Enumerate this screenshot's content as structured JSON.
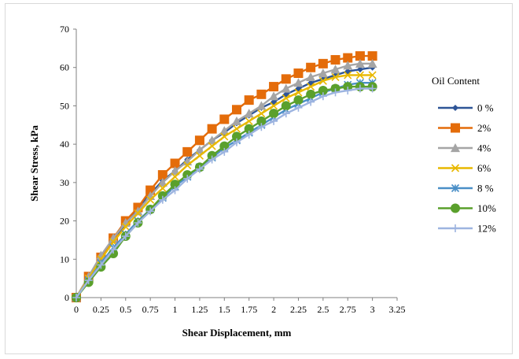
{
  "chart_data": {
    "type": "line",
    "title": "",
    "xlabel": "Shear Displacement, mm",
    "ylabel": "Shear Stress, kPa",
    "xlim": [
      0,
      3.25
    ],
    "ylim": [
      0,
      70
    ],
    "x_ticks": [
      0,
      0.25,
      0.5,
      0.75,
      1,
      1.25,
      1.5,
      1.75,
      2,
      2.25,
      2.5,
      2.75,
      3,
      3.25
    ],
    "x_tick_labels": [
      "0",
      "0.25",
      "0.5",
      "0.75",
      "1",
      "1.25",
      "1.5",
      "1.75",
      "2",
      "2.25",
      "2.5",
      "2.75",
      "3",
      "3.25"
    ],
    "y_ticks": [
      0,
      10,
      20,
      30,
      40,
      50,
      60,
      70
    ],
    "y_tick_labels": [
      "0",
      "10",
      "20",
      "30",
      "40",
      "50",
      "60",
      "70"
    ],
    "grid": false,
    "legend_title": "Oil Content",
    "legend_position": "right",
    "series": [
      {
        "name": "0 %",
        "color": "#2e5597",
        "marker": "diamond",
        "x": [
          0,
          0.125,
          0.25,
          0.375,
          0.5,
          0.625,
          0.75,
          0.875,
          1,
          1.125,
          1.25,
          1.375,
          1.5,
          1.625,
          1.75,
          1.875,
          2,
          2.125,
          2.25,
          2.375,
          2.5,
          2.625,
          2.75,
          2.875,
          3
        ],
        "y": [
          0,
          5.5,
          10.5,
          15,
          19,
          23.5,
          27,
          30.5,
          33,
          36,
          38.5,
          41,
          43,
          45.5,
          47.5,
          49.5,
          51,
          53,
          54.5,
          56,
          57,
          58,
          59,
          59.5,
          60
        ]
      },
      {
        "name": "2%",
        "color": "#e46c0a",
        "marker": "square",
        "x": [
          0,
          0.125,
          0.25,
          0.375,
          0.5,
          0.625,
          0.75,
          0.875,
          1,
          1.125,
          1.25,
          1.375,
          1.5,
          1.625,
          1.75,
          1.875,
          2,
          2.125,
          2.25,
          2.375,
          2.5,
          2.625,
          2.75,
          2.875,
          3
        ],
        "y": [
          0,
          5.5,
          10.5,
          15.5,
          20,
          23.5,
          28,
          32,
          35,
          38,
          41,
          44,
          46.5,
          49,
          51.5,
          53,
          55,
          57,
          58.5,
          60,
          61,
          62,
          62.5,
          63,
          63
        ]
      },
      {
        "name": "4%",
        "color": "#a5a5a5",
        "marker": "triangle",
        "x": [
          0,
          0.125,
          0.25,
          0.375,
          0.5,
          0.625,
          0.75,
          0.875,
          1,
          1.125,
          1.25,
          1.375,
          1.5,
          1.625,
          1.75,
          1.875,
          2,
          2.125,
          2.25,
          2.375,
          2.5,
          2.625,
          2.75,
          2.875,
          3
        ],
        "y": [
          0,
          5.5,
          11,
          15.5,
          19.5,
          22.5,
          26.5,
          30,
          33,
          35.5,
          38.5,
          41,
          43.5,
          46,
          48,
          50,
          52.5,
          54.5,
          56,
          57.5,
          58.5,
          59.5,
          60.5,
          61,
          61
        ]
      },
      {
        "name": "6%",
        "color": "#e8b800",
        "marker": "x",
        "x": [
          0,
          0.125,
          0.25,
          0.375,
          0.5,
          0.625,
          0.75,
          0.875,
          1,
          1.125,
          1.25,
          1.375,
          1.5,
          1.625,
          1.75,
          1.875,
          2,
          2.125,
          2.25,
          2.375,
          2.5,
          2.625,
          2.75,
          2.875,
          3
        ],
        "y": [
          0,
          5,
          10,
          14.5,
          18.5,
          22,
          25.5,
          28.5,
          31.5,
          34.5,
          37,
          39.5,
          42,
          44,
          46,
          48,
          50,
          52,
          53.5,
          55,
          56.5,
          57.5,
          58,
          58,
          58
        ]
      },
      {
        "name": "8 %",
        "color": "#4a8fc7",
        "marker": "asterisk",
        "x": [
          0,
          0.125,
          0.25,
          0.375,
          0.5,
          0.625,
          0.75,
          0.875,
          1,
          1.125,
          1.25,
          1.375,
          1.5,
          1.625,
          1.75,
          1.875,
          2,
          2.125,
          2.25,
          2.375,
          2.5,
          2.625,
          2.75,
          2.875,
          3
        ],
        "y": [
          0,
          4.5,
          9,
          13,
          16.5,
          20,
          23,
          26,
          29,
          31.5,
          34,
          36.5,
          39,
          41,
          43,
          45,
          47,
          49,
          50.5,
          52,
          53.5,
          54.5,
          55.5,
          56,
          56
        ]
      },
      {
        "name": "10%",
        "color": "#5aa02c",
        "marker": "circle",
        "x": [
          0,
          0.125,
          0.25,
          0.375,
          0.5,
          0.625,
          0.75,
          0.875,
          1,
          1.125,
          1.25,
          1.375,
          1.5,
          1.625,
          1.75,
          1.875,
          2,
          2.125,
          2.25,
          2.375,
          2.5,
          2.625,
          2.75,
          2.875,
          3
        ],
        "y": [
          0,
          4,
          8,
          11.5,
          16,
          19.5,
          23,
          26.5,
          29.5,
          32,
          34,
          37,
          39.5,
          42,
          44,
          46,
          48,
          50,
          51.5,
          53,
          54,
          54.5,
          55,
          55,
          55
        ]
      },
      {
        "name": "12%",
        "color": "#9db4e0",
        "marker": "plus",
        "x": [
          0,
          0.125,
          0.25,
          0.375,
          0.5,
          0.625,
          0.75,
          0.875,
          1,
          1.125,
          1.25,
          1.375,
          1.5,
          1.625,
          1.75,
          1.875,
          2,
          2.125,
          2.25,
          2.375,
          2.5,
          2.625,
          2.75,
          2.875,
          3
        ],
        "y": [
          0,
          4.5,
          8.5,
          12.5,
          16,
          19.5,
          22.5,
          25.5,
          28,
          31,
          33.5,
          36,
          38,
          40.5,
          42.5,
          44.5,
          46,
          48,
          49.5,
          51,
          52.5,
          53.5,
          54,
          54.5,
          54.5
        ]
      }
    ]
  }
}
